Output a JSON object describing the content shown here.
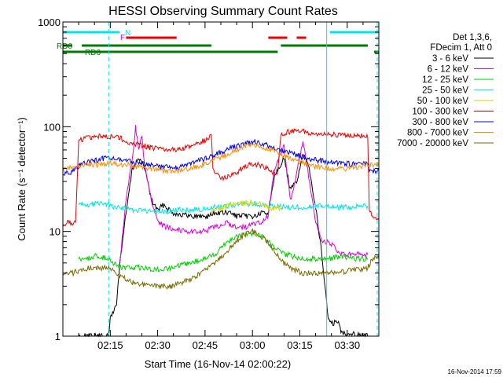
{
  "chart_data": {
    "type": "line",
    "title": "HESSI Observing Summary Count Rates",
    "xlabel": "Start Time (16-Nov-14 02:00:22)",
    "ylabel": "Count Rate (s⁻¹ detector⁻¹)",
    "x_unit": "minutes after 02:00:22",
    "xlim": [
      0,
      100
    ],
    "ylim": [
      1,
      1000
    ],
    "yscale": "log",
    "xtick_values": [
      15,
      30,
      45,
      60,
      75,
      90
    ],
    "xtick_labels": [
      "02:15",
      "02:30",
      "02:45",
      "03:00",
      "03:15",
      "03:30"
    ],
    "ytick_values": [
      1,
      10,
      100,
      1000
    ],
    "ytick_labels": [
      "1",
      "10",
      "100",
      "1000"
    ],
    "stamp": "16-Nov-2014 17:59",
    "legend_header": [
      "Det 1,3,6,",
      "FDecim 1, Att 0"
    ],
    "legend_position": "right",
    "grid": false,
    "flags": {
      "N_label": "N",
      "F_label": "F",
      "RD0_label": "RD0",
      "RD6_label": "RD6",
      "N_color": "#00e5e5",
      "F_color": "#ee0000",
      "RD_color": "#007a00",
      "N_segments": [
        [
          0,
          18
        ],
        [
          84.5,
          100
        ]
      ],
      "F_segments": [
        [
          20,
          36
        ],
        [
          65,
          71
        ],
        [
          74,
          77
        ]
      ],
      "RD0_segments": [
        [
          0,
          3
        ],
        [
          6,
          47
        ],
        [
          69,
          96.5
        ]
      ],
      "RD6_segments": [
        [
          0,
          50
        ],
        [
          50,
          68
        ],
        [
          98.5,
          100
        ]
      ],
      "dashed_lines_x": [
        14.5,
        99.5
      ],
      "solid_lines_x": [
        83.5
      ]
    },
    "series": [
      {
        "name": "3 - 6 keV",
        "color": "#000000",
        "points": [
          [
            5,
            1
          ],
          [
            14.5,
            1
          ],
          [
            15,
            1.5
          ],
          [
            17,
            2
          ],
          [
            18,
            5
          ],
          [
            20,
            15
          ],
          [
            22,
            40
          ],
          [
            24,
            50
          ],
          [
            26,
            40
          ],
          [
            28,
            20
          ],
          [
            30,
            16
          ],
          [
            32,
            18
          ],
          [
            35,
            15
          ],
          [
            40,
            14
          ],
          [
            45,
            14
          ],
          [
            46,
            14
          ],
          [
            48,
            15
          ],
          [
            50,
            15
          ],
          [
            53,
            15
          ],
          [
            55,
            14
          ],
          [
            58,
            14
          ],
          [
            61,
            14
          ],
          [
            63,
            15
          ],
          [
            65,
            15
          ],
          [
            67,
            35
          ],
          [
            70,
            50
          ],
          [
            72,
            25
          ],
          [
            74,
            30
          ],
          [
            76,
            55
          ],
          [
            78,
            40
          ],
          [
            80,
            17
          ],
          [
            82,
            6
          ],
          [
            83.5,
            2
          ],
          [
            84,
            1.5
          ],
          [
            85,
            1.3
          ],
          [
            87,
            1.4
          ],
          [
            88,
            1.1
          ],
          [
            96.5,
            1
          ]
        ]
      },
      {
        "name": "6 - 12 keV",
        "color": "#e000e0",
        "points": [
          [
            18,
            5
          ],
          [
            20,
            20
          ],
          [
            22,
            50
          ],
          [
            23,
            100
          ],
          [
            24,
            60
          ],
          [
            25,
            80
          ],
          [
            26,
            40
          ],
          [
            28,
            20
          ],
          [
            30,
            12
          ],
          [
            33,
            11
          ],
          [
            36,
            10.5
          ],
          [
            40,
            10
          ],
          [
            45,
            10
          ],
          [
            48,
            11
          ],
          [
            52,
            12
          ],
          [
            55,
            11
          ],
          [
            58,
            11
          ],
          [
            61,
            12
          ],
          [
            63,
            12
          ],
          [
            65,
            14
          ],
          [
            67,
            40
          ],
          [
            70,
            65
          ],
          [
            72,
            20
          ],
          [
            74,
            35
          ],
          [
            76,
            75
          ],
          [
            78,
            30
          ],
          [
            80,
            12
          ],
          [
            82,
            8
          ],
          [
            84,
            8
          ],
          [
            86,
            7
          ],
          [
            88,
            6
          ],
          [
            90,
            6
          ],
          [
            92,
            6
          ],
          [
            94,
            6
          ],
          [
            96.5,
            6
          ]
        ]
      },
      {
        "name": "12 - 25 keV",
        "color": "#00d000",
        "points": [
          [
            5,
            5.5
          ],
          [
            8,
            5.5
          ],
          [
            10,
            5.8
          ],
          [
            12,
            5.8
          ],
          [
            14.5,
            5.5
          ],
          [
            16,
            5
          ],
          [
            18,
            4.5
          ],
          [
            20,
            4.5
          ],
          [
            25,
            4.5
          ],
          [
            30,
            4.3
          ],
          [
            35,
            4.5
          ],
          [
            40,
            5
          ],
          [
            45,
            5.5
          ],
          [
            48,
            6
          ],
          [
            50,
            7
          ],
          [
            52,
            8
          ],
          [
            55,
            9
          ],
          [
            58,
            9.5
          ],
          [
            61,
            9.5
          ],
          [
            63,
            9
          ],
          [
            65,
            8
          ],
          [
            67,
            7
          ],
          [
            70,
            6
          ],
          [
            73,
            5.8
          ],
          [
            76,
            5.5
          ],
          [
            80,
            5.5
          ],
          [
            84,
            5.5
          ],
          [
            88,
            5.8
          ],
          [
            92,
            5.5
          ],
          [
            96.5,
            5.5
          ]
        ]
      },
      {
        "name": "25 - 50 keV",
        "color": "#00e5e5",
        "points": [
          [
            5,
            18
          ],
          [
            8,
            18
          ],
          [
            10,
            18.5
          ],
          [
            14.5,
            18
          ],
          [
            17,
            17
          ],
          [
            20,
            16.5
          ],
          [
            23,
            16
          ],
          [
            26,
            15.5
          ],
          [
            30,
            15.5
          ],
          [
            33,
            15.5
          ],
          [
            36,
            16
          ],
          [
            40,
            16
          ],
          [
            45,
            16.5
          ],
          [
            47,
            16.5
          ],
          [
            48,
            17
          ],
          [
            50,
            17.5
          ],
          [
            55,
            18
          ],
          [
            60,
            18.5
          ],
          [
            63,
            18
          ],
          [
            65,
            17.5
          ],
          [
            70,
            17
          ],
          [
            75,
            17
          ],
          [
            80,
            17.5
          ],
          [
            84,
            17.5
          ],
          [
            87,
            17
          ],
          [
            90,
            17
          ],
          [
            92,
            17
          ],
          [
            94,
            17.5
          ],
          [
            96.5,
            17.5
          ]
        ]
      },
      {
        "name": "50 - 100 keV",
        "color": "#d6d600",
        "points": [
          [
            47,
            15.5
          ],
          [
            49,
            16
          ],
          [
            51,
            17
          ],
          [
            53,
            18
          ],
          [
            55,
            18.5
          ],
          [
            58,
            19
          ],
          [
            60,
            19
          ],
          [
            63,
            18
          ],
          [
            65,
            17
          ],
          [
            67,
            16.5
          ],
          [
            69,
            16.5
          ]
        ]
      },
      {
        "name": "100 - 300 keV",
        "color": "#ee0000",
        "points": [
          [
            0,
            12
          ],
          [
            3,
            12
          ],
          [
            4,
            12
          ],
          [
            5,
            75
          ],
          [
            8,
            78
          ],
          [
            10,
            82
          ],
          [
            12,
            82
          ],
          [
            14.5,
            80
          ],
          [
            17,
            80
          ],
          [
            18,
            78
          ],
          [
            20,
            72
          ],
          [
            23,
            68
          ],
          [
            26,
            65
          ],
          [
            29,
            62
          ],
          [
            32,
            60
          ],
          [
            35,
            60
          ],
          [
            38,
            62
          ],
          [
            41,
            66
          ],
          [
            44,
            72
          ],
          [
            46,
            78
          ],
          [
            47,
            85
          ],
          [
            47.5,
            40
          ],
          [
            50,
            32
          ],
          [
            53,
            34
          ],
          [
            55,
            37
          ],
          [
            58,
            42
          ],
          [
            60,
            44
          ],
          [
            62,
            43
          ],
          [
            64,
            40
          ],
          [
            66,
            37
          ],
          [
            68,
            35
          ],
          [
            69,
            85
          ],
          [
            72,
            90
          ],
          [
            75,
            92
          ],
          [
            78,
            88
          ],
          [
            81,
            86
          ],
          [
            84,
            84
          ],
          [
            87,
            83
          ],
          [
            90,
            82
          ],
          [
            93,
            82
          ],
          [
            96.5,
            82
          ],
          [
            97,
            15
          ],
          [
            100,
            13
          ]
        ]
      },
      {
        "name": "300 - 800 keV",
        "color": "#0000ee",
        "points": [
          [
            0,
            35
          ],
          [
            3,
            37
          ],
          [
            4,
            40
          ],
          [
            6,
            44
          ],
          [
            9,
            47
          ],
          [
            12,
            49
          ],
          [
            15,
            50
          ],
          [
            18,
            49
          ],
          [
            21,
            47
          ],
          [
            24,
            45
          ],
          [
            27,
            43
          ],
          [
            30,
            42
          ],
          [
            33,
            41
          ],
          [
            36,
            41
          ],
          [
            39,
            43
          ],
          [
            42,
            46
          ],
          [
            45,
            50
          ],
          [
            48,
            54
          ],
          [
            51,
            58
          ],
          [
            54,
            64
          ],
          [
            57,
            68
          ],
          [
            60,
            72
          ],
          [
            62,
            71
          ],
          [
            64,
            68
          ],
          [
            67,
            63
          ],
          [
            70,
            58
          ],
          [
            73,
            55
          ],
          [
            76,
            52
          ],
          [
            79,
            49
          ],
          [
            82,
            47
          ],
          [
            85,
            46
          ],
          [
            88,
            45
          ],
          [
            91,
            44
          ],
          [
            94,
            44
          ],
          [
            96.5,
            44
          ],
          [
            97,
            38
          ],
          [
            100,
            38
          ]
        ]
      },
      {
        "name": "800 - 7000 keV",
        "color": "#ff8c00",
        "points": [
          [
            0,
            40
          ],
          [
            3,
            41
          ],
          [
            6,
            42
          ],
          [
            9,
            43
          ],
          [
            12,
            44
          ],
          [
            15,
            45
          ],
          [
            18,
            44
          ],
          [
            21,
            43
          ],
          [
            24,
            41
          ],
          [
            27,
            40
          ],
          [
            30,
            39
          ],
          [
            33,
            38
          ],
          [
            36,
            38
          ],
          [
            39,
            39
          ],
          [
            42,
            41
          ],
          [
            45,
            44
          ],
          [
            48,
            48
          ],
          [
            51,
            53
          ],
          [
            54,
            58
          ],
          [
            57,
            64
          ],
          [
            59,
            67
          ],
          [
            61,
            67
          ],
          [
            63,
            65
          ],
          [
            66,
            60
          ],
          [
            69,
            54
          ],
          [
            72,
            49
          ],
          [
            75,
            46
          ],
          [
            78,
            43
          ],
          [
            81,
            41
          ],
          [
            84,
            40
          ],
          [
            87,
            40
          ],
          [
            90,
            40
          ],
          [
            93,
            41
          ],
          [
            96,
            43
          ],
          [
            98,
            44
          ],
          [
            100,
            45
          ]
        ]
      },
      {
        "name": "7000 - 20000 keV",
        "color": "#7a6a00",
        "points": [
          [
            0,
            4
          ],
          [
            3,
            4
          ],
          [
            5,
            4.2
          ],
          [
            8,
            4.5
          ],
          [
            12,
            4.5
          ],
          [
            14.5,
            4.4
          ],
          [
            17,
            4
          ],
          [
            20,
            3.5
          ],
          [
            23,
            3.2
          ],
          [
            26,
            3.1
          ],
          [
            29,
            3
          ],
          [
            32,
            3
          ],
          [
            35,
            3
          ],
          [
            38,
            3.3
          ],
          [
            41,
            3.6
          ],
          [
            44,
            4
          ],
          [
            47,
            4.7
          ],
          [
            50,
            5.6
          ],
          [
            53,
            7
          ],
          [
            56,
            8.6
          ],
          [
            58,
            9.5
          ],
          [
            60,
            10
          ],
          [
            62,
            9.3
          ],
          [
            64,
            8.3
          ],
          [
            66,
            7.2
          ],
          [
            68,
            6
          ],
          [
            70,
            5
          ],
          [
            73,
            4.3
          ],
          [
            76,
            4
          ],
          [
            80,
            4
          ],
          [
            84,
            4
          ],
          [
            88,
            4.1
          ],
          [
            92,
            4.3
          ],
          [
            96.5,
            4.5
          ],
          [
            98,
            5.5
          ],
          [
            100,
            6
          ]
        ]
      }
    ]
  }
}
